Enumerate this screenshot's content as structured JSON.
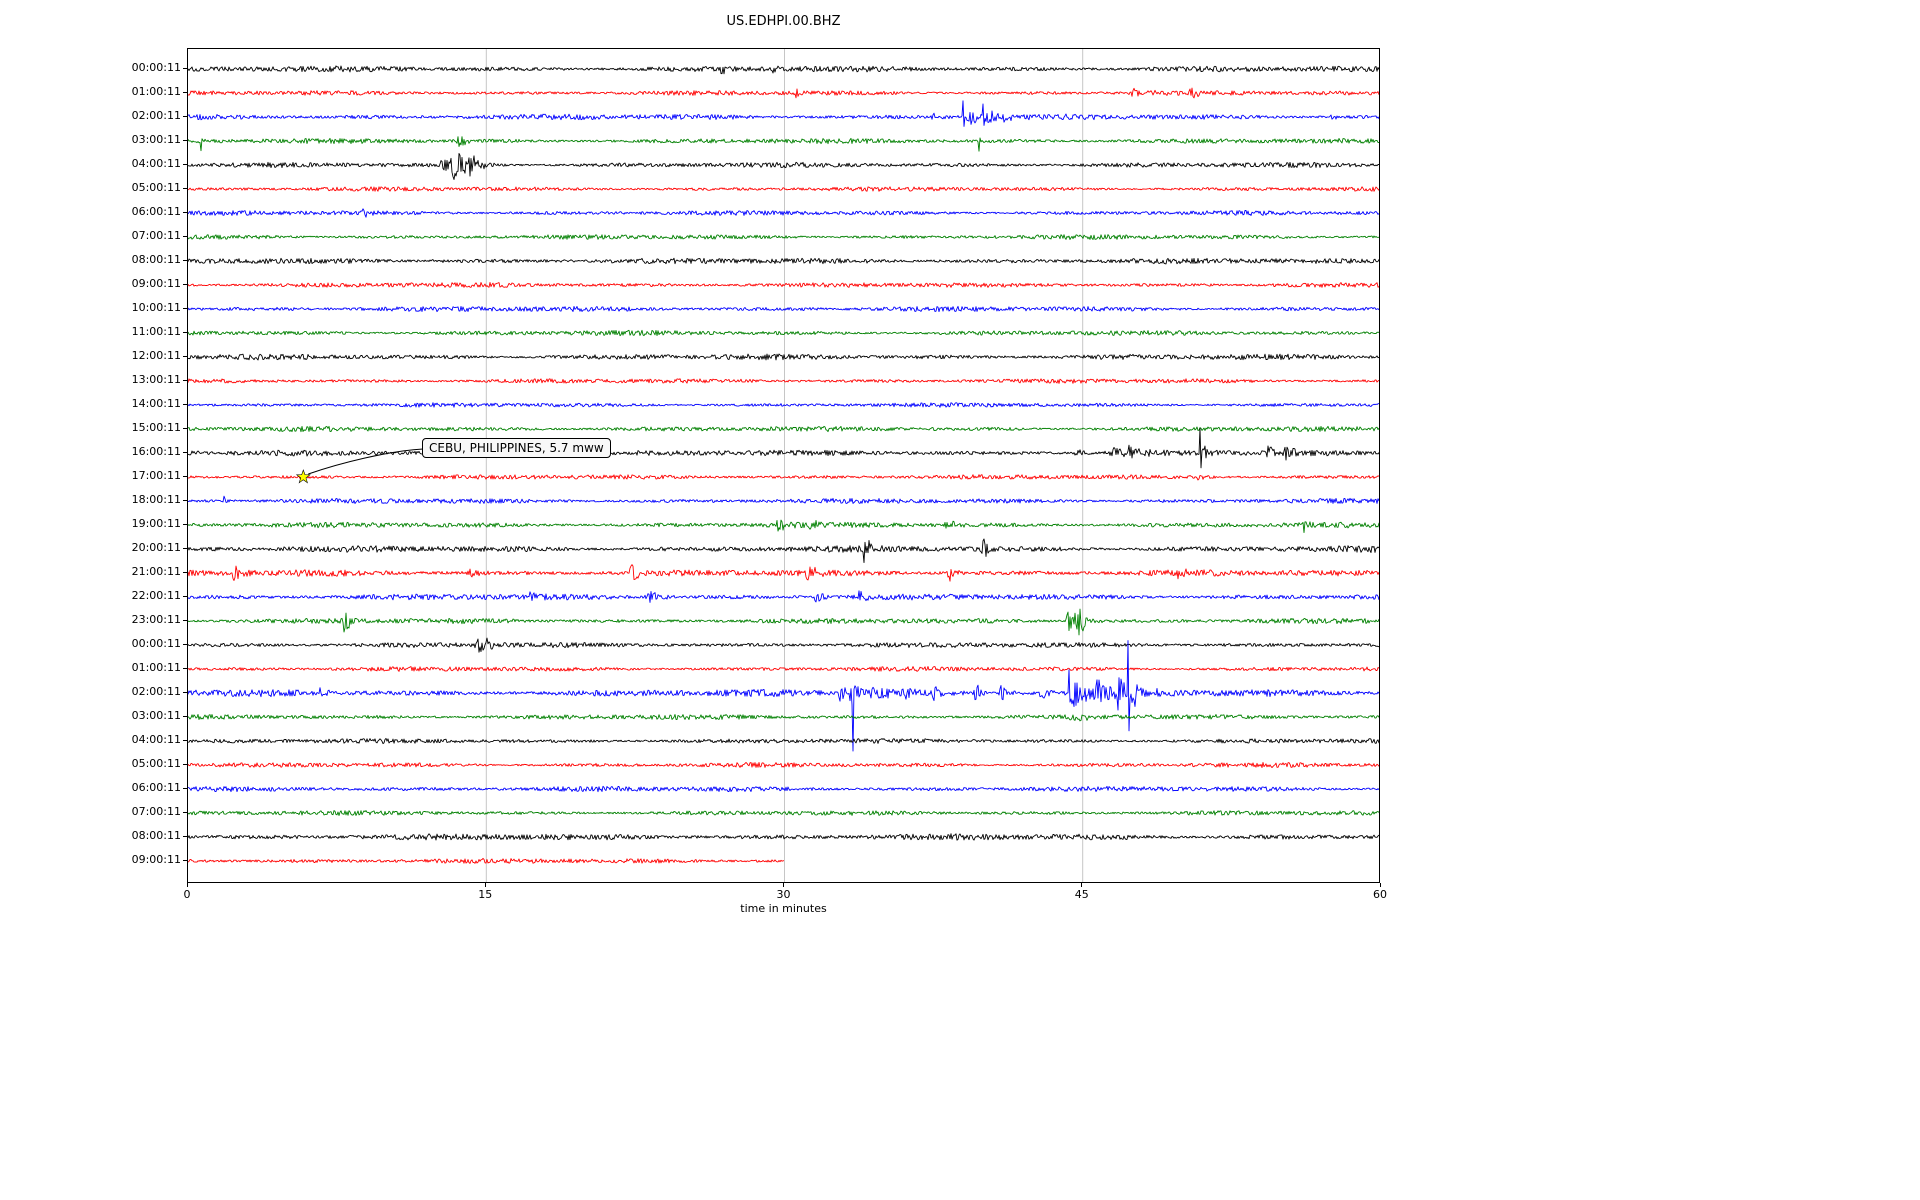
{
  "title": "US.EDHPI.00.BHZ",
  "xlabel": "time in minutes",
  "annotation": {
    "text": "CEBU, PHILIPPINES, 5.7 mww",
    "row_index": 17,
    "row_label": "17:00:11",
    "t_minutes": 5.8,
    "marker": "star",
    "marker_color": "#ffff00"
  },
  "colors": {
    "cycle": [
      "#000000",
      "#ff0000",
      "#0000ff",
      "#008000"
    ],
    "grid": "#b8b8b8",
    "axis": "#000000",
    "background": "#ffffff",
    "star_fill": "#ffff00"
  },
  "chart_data": {
    "type": "line",
    "subtype": "helicorder-seismogram",
    "title": "US.EDHPI.00.BHZ",
    "axis": {
      "xlabel": "time in minutes",
      "x_min": 0,
      "x_max": 60,
      "ticks": [
        0,
        15,
        30,
        45,
        60
      ],
      "grid": [
        15,
        30,
        45
      ]
    },
    "minutes_per_row": 60,
    "rows": [
      {
        "label": "00:00:11",
        "noise": 1.7,
        "events": [
          {
            "t": 26.8,
            "amp": 9,
            "dur": 0.25
          },
          {
            "t": 29.4,
            "amp": 4,
            "dur": 0.2
          }
        ]
      },
      {
        "label": "01:00:11",
        "noise": 1.4,
        "events": [
          {
            "t": 30.6,
            "amp": 6,
            "dur": 0.15
          },
          {
            "t": 47.6,
            "amp": 4,
            "dur": 0.8
          },
          {
            "t": 50.4,
            "amp": 6,
            "dur": 0.3
          }
        ]
      },
      {
        "label": "02:00:11",
        "noise": 1.7,
        "events": [
          {
            "t": 37.4,
            "amp": 4,
            "dur": 0.3
          },
          {
            "t": 39.0,
            "amp": 15,
            "type": "spike",
            "dir": 0
          },
          {
            "t": 39.3,
            "amp": 10,
            "dur": 0.4
          },
          {
            "t": 40.0,
            "amp": 13,
            "type": "spike",
            "dir": 0
          },
          {
            "t": 40.3,
            "amp": 8,
            "dur": 0.5
          },
          {
            "t": 41.0,
            "amp": 7,
            "dur": 0.3
          },
          {
            "t": 57.5,
            "amp": 6,
            "dur": 0.2
          }
        ]
      },
      {
        "label": "03:00:11",
        "noise": 1.5,
        "events": [
          {
            "t": 0.65,
            "amp": 11,
            "type": "spike",
            "dir": -1
          },
          {
            "t": 13.6,
            "amp": 8,
            "dur": 0.3
          },
          {
            "t": 39.8,
            "amp": 9,
            "type": "spike",
            "dir": -1
          }
        ]
      },
      {
        "label": "04:00:11",
        "noise": 1.5,
        "events": [
          {
            "t": 12.8,
            "amp": 10,
            "dur": 0.3
          },
          {
            "t": 13.4,
            "amp": 17,
            "dur": 0.6
          },
          {
            "t": 14.1,
            "amp": 12,
            "dur": 0.45
          }
        ]
      },
      {
        "label": "05:00:11",
        "noise": 1.3,
        "events": []
      },
      {
        "label": "06:00:11",
        "noise": 1.4,
        "events": [
          {
            "t": 8.8,
            "amp": 7,
            "dur": 0.2
          }
        ]
      },
      {
        "label": "07:00:11",
        "noise": 1.4,
        "events": []
      },
      {
        "label": "08:00:11",
        "noise": 1.7,
        "events": []
      },
      {
        "label": "09:00:11",
        "noise": 1.5,
        "events": []
      },
      {
        "label": "10:00:11",
        "noise": 1.6,
        "events": []
      },
      {
        "label": "11:00:11",
        "noise": 1.5,
        "events": []
      },
      {
        "label": "12:00:11",
        "noise": 1.7,
        "events": []
      },
      {
        "label": "13:00:11",
        "noise": 1.4,
        "events": []
      },
      {
        "label": "14:00:11",
        "noise": 1.3,
        "events": []
      },
      {
        "label": "15:00:11",
        "noise": 1.5,
        "events": []
      },
      {
        "label": "16:00:11",
        "noise": 1.7,
        "events": [
          {
            "t": 44.7,
            "amp": 4,
            "dur": 0.3
          },
          {
            "t": 46.6,
            "amp": 8,
            "dur": 0.6
          },
          {
            "t": 47.4,
            "amp": 7,
            "dur": 0.5
          },
          {
            "t": 50.9,
            "amp": 26,
            "type": "spike",
            "dir": 0
          },
          {
            "t": 51.1,
            "amp": 6,
            "dur": 0.3
          },
          {
            "t": 54.3,
            "amp": 7,
            "dur": 0.4
          },
          {
            "t": 55.2,
            "amp": 8,
            "dur": 0.4
          }
        ]
      },
      {
        "label": "17:00:11",
        "noise": 1.4,
        "events": [
          {
            "t": 50.8,
            "amp": 4,
            "dur": 0.3
          }
        ]
      },
      {
        "label": "18:00:11",
        "noise": 1.5,
        "events": [
          {
            "t": 1.8,
            "amp": 5,
            "dur": 0.2
          }
        ]
      },
      {
        "label": "19:00:11",
        "noise": 1.6,
        "events": [
          {
            "t": 29.7,
            "amp": 9,
            "dur": 0.3
          },
          {
            "t": 31.3,
            "amp": 9,
            "dur": 0.35
          },
          {
            "t": 38.1,
            "amp": 6,
            "dur": 0.4
          },
          {
            "t": 56.1,
            "amp": 8,
            "dur": 0.15
          }
        ]
      },
      {
        "label": "20:00:11",
        "noise": 1.9,
        "events": [
          {
            "t": 34.0,
            "amp": 13,
            "type": "spike",
            "dir": -1
          },
          {
            "t": 34.2,
            "amp": 8,
            "dur": 0.4
          },
          {
            "t": 40.0,
            "amp": 11,
            "dur": 0.3
          }
        ]
      },
      {
        "label": "21:00:11",
        "noise": 1.9,
        "events": [
          {
            "t": 2.3,
            "amp": 11,
            "dur": 0.3
          },
          {
            "t": 14.2,
            "amp": 6,
            "dur": 0.25
          },
          {
            "t": 22.3,
            "amp": 9,
            "dur": 0.35
          },
          {
            "t": 31.2,
            "amp": 11,
            "dur": 0.35
          },
          {
            "t": 38.3,
            "amp": 8,
            "dur": 0.3
          },
          {
            "t": 49.8,
            "amp": 6,
            "dur": 0.3
          }
        ]
      },
      {
        "label": "22:00:11",
        "noise": 1.8,
        "events": [
          {
            "t": 17.2,
            "amp": 5,
            "dur": 0.3
          },
          {
            "t": 23.2,
            "amp": 6,
            "dur": 0.5
          },
          {
            "t": 31.6,
            "amp": 8,
            "dur": 0.25
          },
          {
            "t": 33.8,
            "amp": 8,
            "dur": 0.25
          }
        ]
      },
      {
        "label": "23:00:11",
        "noise": 1.6,
        "events": [
          {
            "t": 7.9,
            "amp": 15,
            "dur": 0.3
          },
          {
            "t": 44.3,
            "amp": 12,
            "dur": 0.5
          },
          {
            "t": 44.8,
            "amp": 14,
            "dur": 0.4
          }
        ]
      },
      {
        "label": "00:00:11",
        "noise": 1.6,
        "events": [
          {
            "t": 14.6,
            "amp": 10,
            "dur": 0.4
          },
          {
            "t": 15.0,
            "amp": 6,
            "dur": 0.3
          }
        ]
      },
      {
        "label": "01:00:11",
        "noise": 1.4,
        "events": []
      },
      {
        "label": "02:00:11",
        "noise": 2.1,
        "events": [
          {
            "t": 6.7,
            "amp": 6,
            "dur": 0.3
          },
          {
            "t": 32.8,
            "amp": 10,
            "dur": 0.3
          },
          {
            "t": 33.4,
            "amp": 12,
            "dur": 0.5
          },
          {
            "t": 33.45,
            "amp": 48,
            "type": "spike",
            "dir": -1
          },
          {
            "t": 34.5,
            "amp": 9,
            "dur": 0.8
          },
          {
            "t": 36.0,
            "amp": 7,
            "dur": 0.8
          },
          {
            "t": 37.5,
            "amp": 8,
            "dur": 0.5
          },
          {
            "t": 39.6,
            "amp": 14,
            "dur": 0.2
          },
          {
            "t": 40.9,
            "amp": 8,
            "dur": 0.4
          },
          {
            "t": 42.9,
            "amp": 6,
            "dur": 0.4
          },
          {
            "t": 44.3,
            "amp": 20,
            "type": "spike",
            "dir": 1
          },
          {
            "t": 44.6,
            "amp": 14,
            "dur": 0.8
          },
          {
            "t": 45.8,
            "amp": 12,
            "dur": 0.6
          },
          {
            "t": 46.8,
            "amp": 16,
            "dur": 0.5
          },
          {
            "t": 47.3,
            "amp": 55,
            "type": "spike",
            "dir": 0
          },
          {
            "t": 47.6,
            "amp": 12,
            "dur": 0.6
          }
        ]
      },
      {
        "label": "03:00:11",
        "noise": 1.5,
        "events": [
          {
            "t": 44.5,
            "amp": 4,
            "dur": 0.6
          }
        ]
      },
      {
        "label": "04:00:11",
        "noise": 1.4,
        "events": []
      },
      {
        "label": "05:00:11",
        "noise": 1.4,
        "events": []
      },
      {
        "label": "06:00:11",
        "noise": 1.6,
        "events": []
      },
      {
        "label": "07:00:11",
        "noise": 1.4,
        "events": []
      },
      {
        "label": "08:00:11",
        "noise": 1.9,
        "events": []
      },
      {
        "label": "09:00:11",
        "noise": 1.5,
        "end": 30,
        "events": []
      }
    ]
  }
}
